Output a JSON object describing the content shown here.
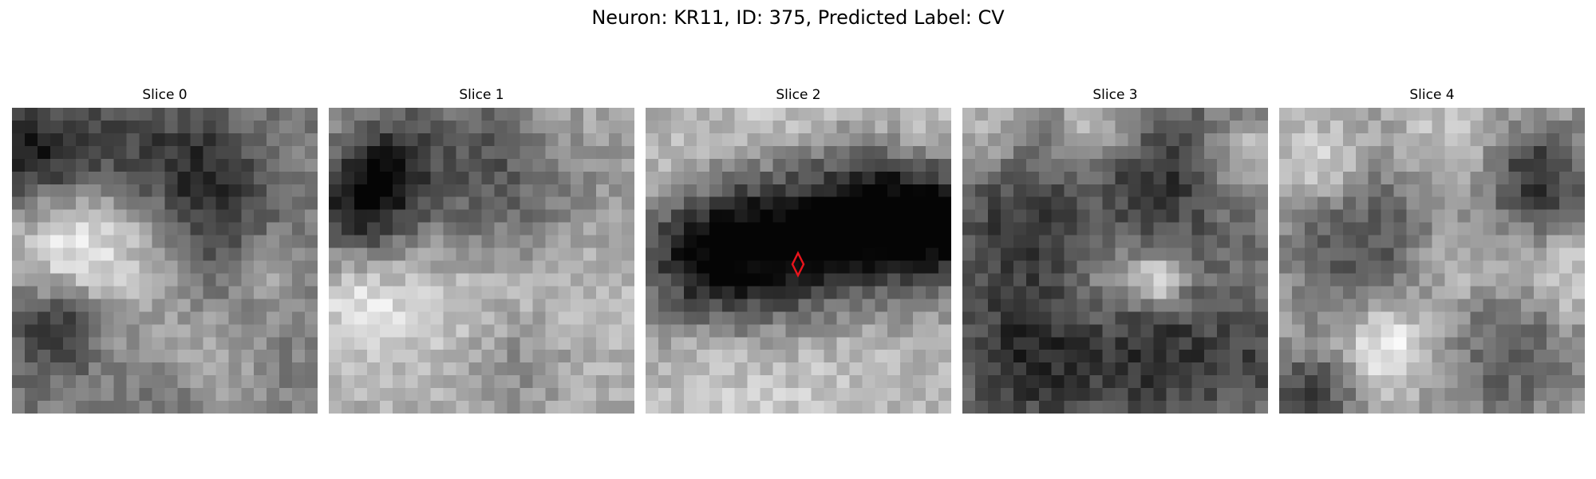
{
  "figure": {
    "title": "Neuron: KR11, ID: 375, Predicted Label: CV",
    "colormap": "grayscale",
    "marker_color": "#e8141c",
    "marker_slice": 2
  },
  "panels": [
    {
      "title": "Slice 0"
    },
    {
      "title": "Slice 1"
    },
    {
      "title": "Slice 2"
    },
    {
      "title": "Slice 3"
    },
    {
      "title": "Slice 4"
    }
  ]
}
